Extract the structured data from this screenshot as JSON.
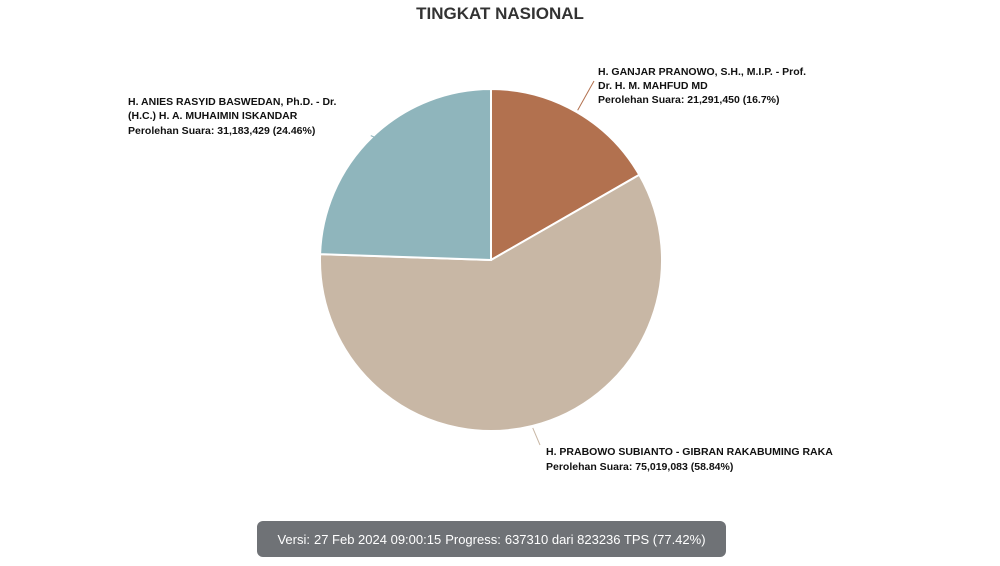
{
  "title": "TINGKAT NASIONAL",
  "chart_data": {
    "type": "pie",
    "title": "TINGKAT NASIONAL",
    "slices": [
      {
        "name_line1": "H. GANJAR PRANOWO, S.H., M.I.P. - Prof.",
        "name_line2": "Dr. H. M. MAHFUD MD",
        "votes_label": "Perolehan Suara: 21,291,450 (16.7%)",
        "value": 21291450,
        "percent": 16.7,
        "color": "#b2714f"
      },
      {
        "name_line1": "H. PRABOWO SUBIANTO - GIBRAN RAKABUMING RAKA",
        "votes_label": "Perolehan Suara: 75,019,083 (58.84%)",
        "value": 75019083,
        "percent": 58.84,
        "color": "#c8b7a5"
      },
      {
        "name_line1": "H. ANIES RASYID BASWEDAN, Ph.D. - Dr.",
        "name_line2": "(H.C.) H. A. MUHAIMIN ISKANDAR",
        "votes_label": "Perolehan Suara: 31,183,429 (24.46%)",
        "value": 31183429,
        "percent": 24.46,
        "color": "#8fb5bc"
      }
    ]
  },
  "status": {
    "version_label": "Versi:",
    "version_value": "27 Feb 2024 09:00:15",
    "progress_label": "Progress:",
    "progress_value": "637310 dari 823236 TPS (77.42%)"
  }
}
